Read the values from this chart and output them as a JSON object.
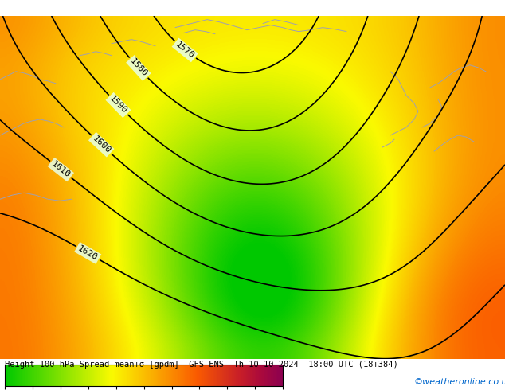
{
  "title": "Height 100 hPa Spread mean+σ [gpdm]  GFS ENS  Th 10-10-2024  18:00 UTC (18+384)",
  "colorbar_label": "",
  "watermark": "©weatheronline.co.uk",
  "contour_levels": [
    1570,
    1580,
    1590,
    1600,
    1610,
    1620
  ],
  "spread_vmin": 0,
  "spread_vmax": 20,
  "colormap_colors": [
    "#00c800",
    "#32d200",
    "#64dc00",
    "#96e600",
    "#c8f000",
    "#fafa00",
    "#fad200",
    "#faaa00",
    "#fa8200",
    "#fa5a00",
    "#e03c14",
    "#c81e28",
    "#aa0a3c",
    "#8c0050"
  ],
  "background_color": "#ffffff",
  "map_bg": "#ffff00",
  "fig_width": 6.34,
  "fig_height": 4.9,
  "dpi": 100
}
